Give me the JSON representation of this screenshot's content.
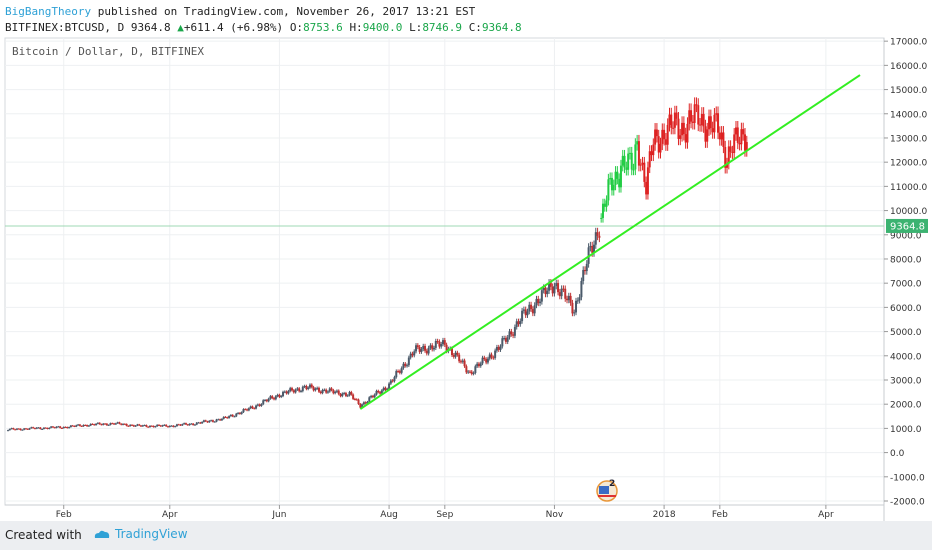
{
  "header": {
    "author": "BigBangTheory",
    "published_text": " published on TradingView.com, November 26, 2017 13:21 EST",
    "symbol": "BITFINEX:BTCUSD, D",
    "last": "9364.8",
    "change": "+611.4 (+6.98%)",
    "o_label": "O:",
    "o_value": "8753.6",
    "h_label": "H:",
    "h_value": "9400.0",
    "l_label": "L:",
    "l_value": "8746.9",
    "c_label": "C:",
    "c_value": "9364.8"
  },
  "footer": {
    "created_with": "Created with",
    "brand": "TradingView"
  },
  "chart_data": {
    "type": "line",
    "title": "Bitcoin / Dollar, D, BITFINEX",
    "x_ticks": [
      "Feb",
      "Apr",
      "Jun",
      "Aug",
      "Sep",
      "Nov",
      "2018",
      "Feb",
      "Apr"
    ],
    "y_ticks": [
      "17000.0",
      "16000.0",
      "15000.0",
      "14000.0",
      "13000.0",
      "12000.0",
      "11000.0",
      "10000.0",
      "9000.0",
      "8000.0",
      "7000.0",
      "6000.0",
      "5000.0",
      "4000.0",
      "3000.0",
      "2000.0",
      "1000.0",
      "0.0",
      "-1000.0",
      "-2000.0"
    ],
    "ylim": [
      -2000,
      17200
    ],
    "last_price_label": "9364.8",
    "last_price": 9364.8,
    "event_badge": "2",
    "colors": {
      "up": "#22cc44",
      "down": "#dd2222",
      "history": "#556677",
      "trendline": "#33ee22",
      "last_price": "#3cb371"
    },
    "series": [
      {
        "x": [
          "2017-01-01",
          "2017-01-15",
          "2017-02-01",
          "2017-02-15",
          "2017-03-01",
          "2017-03-15",
          "2017-04-01",
          "2017-04-15",
          "2017-05-01",
          "2017-05-15",
          "2017-06-01",
          "2017-06-15",
          "2017-07-01",
          "2017-07-10",
          "2017-07-16",
          "2017-08-01",
          "2017-08-15",
          "2017-09-01",
          "2017-09-15",
          "2017-10-01",
          "2017-10-15",
          "2017-11-01",
          "2017-11-12",
          "2017-11-20",
          "2017-11-26"
        ],
        "values": [
          950,
          1000,
          1050,
          1150,
          1200,
          1100,
          1100,
          1200,
          1400,
          1800,
          2400,
          2700,
          2500,
          2400,
          1950,
          2800,
          4200,
          4500,
          3300,
          4300,
          5700,
          7000,
          5900,
          8100,
          9364.8
        ]
      },
      {
        "x": [
          "2017-11-27",
          "2017-12-01",
          "2017-12-07",
          "2017-12-08",
          "2017-12-15",
          "2017-12-17",
          "2017-12-22",
          "2017-12-26",
          "2018-01-01",
          "2018-01-06",
          "2018-01-12",
          "2018-01-16",
          "2018-01-20",
          "2018-01-25",
          "2018-01-31",
          "2018-02-05",
          "2018-02-08",
          "2018-02-12",
          "2018-02-16"
        ],
        "values": [
          9700,
          10800,
          11600,
          12000,
          11800,
          12900,
          11000,
          12800,
          13200,
          13500,
          13400,
          13700,
          13900,
          13500,
          13400,
          12200,
          12700,
          12900,
          13200
        ]
      }
    ],
    "trendline": {
      "start": {
        "x": "2017-07-16",
        "y": 1800
      },
      "end": {
        "x": "2018-04-20",
        "y": 15600
      }
    }
  }
}
